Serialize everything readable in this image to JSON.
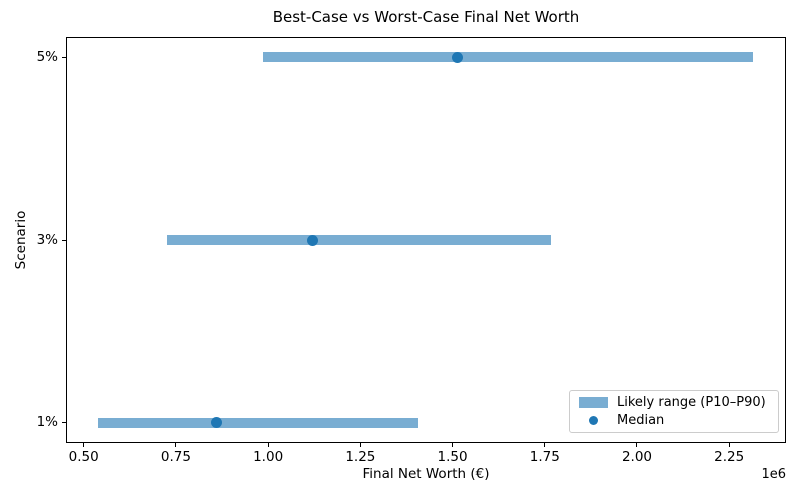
{
  "chart_data": {
    "type": "bar",
    "orientation": "horizontal",
    "title": "Best-Case vs Worst-Case Final Net Worth",
    "xlabel": "Final Net Worth (€)",
    "ylabel": "Scenario",
    "categories": [
      "1%",
      "3%",
      "5%"
    ],
    "series": [
      {
        "name": "Likely range (P10–P90)",
        "kind": "range_bar",
        "low_values": [
          540000,
          725000,
          986000
        ],
        "high_values": [
          1406000,
          1768000,
          2315000
        ],
        "color": "#79add2"
      },
      {
        "name": "Median",
        "kind": "point",
        "values": [
          861000,
          1121000,
          1513000
        ],
        "color": "#1f77b4"
      }
    ],
    "xlim": [
      452000,
      2404000
    ],
    "ylim": [
      -0.11,
      2.11
    ],
    "x_ticks": {
      "values": [
        500000,
        750000,
        1000000,
        1250000,
        1500000,
        1750000,
        2000000,
        2250000
      ],
      "labels": [
        "0.50",
        "0.75",
        "1.00",
        "1.25",
        "1.50",
        "1.75",
        "2.00",
        "2.25"
      ],
      "offset_label": "1e6"
    },
    "grid": false,
    "legend_position": "lower right",
    "colors": {
      "range_bar": "#79add2",
      "median_dot": "#1f77b4",
      "spine": "#000000",
      "legend_border": "#cccccc"
    }
  }
}
